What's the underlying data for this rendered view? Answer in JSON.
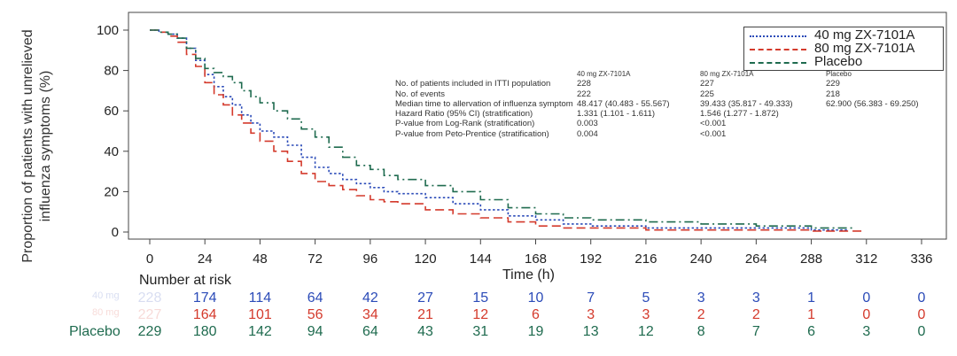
{
  "chart_data": {
    "type": "line",
    "subtype": "kaplan-meier step curve",
    "ylabel": [
      "Proportion of patients with unrelieved",
      "influenza symptoms (%)"
    ],
    "xlabel": "Time (h)",
    "xlim": [
      0,
      336
    ],
    "ylim": [
      0,
      100
    ],
    "xticks": [
      "0",
      "24",
      "48",
      "72",
      "96",
      "120",
      "144",
      "168",
      "192",
      "216",
      "240",
      "264",
      "288",
      "312",
      "336"
    ],
    "yticks": [
      "0",
      "20",
      "40",
      "60",
      "80",
      "100"
    ],
    "grid": false,
    "legend_position": "top-right",
    "series": [
      {
        "name": "40 mg ZX-7101A",
        "color": "#2b4bb8",
        "style": "dotted",
        "points": [
          [
            0,
            100
          ],
          [
            4,
            99
          ],
          [
            8,
            98
          ],
          [
            12,
            96
          ],
          [
            16,
            91
          ],
          [
            20,
            85
          ],
          [
            24,
            78
          ],
          [
            28,
            72
          ],
          [
            32,
            67
          ],
          [
            36,
            63
          ],
          [
            40,
            58
          ],
          [
            44,
            54
          ],
          [
            48,
            50
          ],
          [
            54,
            47
          ],
          [
            60,
            43
          ],
          [
            66,
            37
          ],
          [
            72,
            32
          ],
          [
            78,
            29
          ],
          [
            84,
            26
          ],
          [
            90,
            24
          ],
          [
            96,
            22
          ],
          [
            102,
            20
          ],
          [
            108,
            19
          ],
          [
            120,
            17
          ],
          [
            132,
            14
          ],
          [
            144,
            11
          ],
          [
            156,
            8
          ],
          [
            168,
            6
          ],
          [
            180,
            4
          ],
          [
            192,
            3
          ],
          [
            216,
            2
          ],
          [
            240,
            2
          ],
          [
            264,
            2
          ],
          [
            288,
            1
          ],
          [
            304,
            1
          ]
        ]
      },
      {
        "name": "80 mg ZX-7101A",
        "color": "#d43a2c",
        "style": "dashed",
        "points": [
          [
            0,
            100
          ],
          [
            4,
            99
          ],
          [
            8,
            97
          ],
          [
            12,
            94
          ],
          [
            16,
            88
          ],
          [
            20,
            82
          ],
          [
            24,
            74
          ],
          [
            28,
            68
          ],
          [
            32,
            63
          ],
          [
            36,
            58
          ],
          [
            40,
            54
          ],
          [
            44,
            49
          ],
          [
            48,
            45
          ],
          [
            54,
            40
          ],
          [
            60,
            35
          ],
          [
            66,
            29
          ],
          [
            72,
            25
          ],
          [
            78,
            23
          ],
          [
            84,
            21
          ],
          [
            90,
            18
          ],
          [
            96,
            16
          ],
          [
            102,
            15
          ],
          [
            108,
            14
          ],
          [
            120,
            11
          ],
          [
            132,
            9
          ],
          [
            144,
            7
          ],
          [
            156,
            5
          ],
          [
            168,
            3
          ],
          [
            180,
            2
          ],
          [
            192,
            2
          ],
          [
            216,
            1
          ],
          [
            240,
            1
          ],
          [
            264,
            1
          ],
          [
            288,
            0.5
          ],
          [
            310,
            0
          ]
        ]
      },
      {
        "name": "Placebo",
        "color": "#1f6b4f",
        "style": "dash-dot",
        "points": [
          [
            0,
            100
          ],
          [
            4,
            99
          ],
          [
            8,
            98
          ],
          [
            12,
            96
          ],
          [
            16,
            91
          ],
          [
            20,
            86
          ],
          [
            24,
            81
          ],
          [
            28,
            79
          ],
          [
            32,
            77
          ],
          [
            36,
            74
          ],
          [
            40,
            70
          ],
          [
            44,
            67
          ],
          [
            48,
            64
          ],
          [
            54,
            60
          ],
          [
            60,
            56
          ],
          [
            66,
            51
          ],
          [
            72,
            47
          ],
          [
            78,
            42
          ],
          [
            84,
            37
          ],
          [
            90,
            33
          ],
          [
            96,
            31
          ],
          [
            102,
            28
          ],
          [
            108,
            26
          ],
          [
            120,
            23
          ],
          [
            132,
            20
          ],
          [
            144,
            16
          ],
          [
            156,
            12
          ],
          [
            168,
            9
          ],
          [
            180,
            7
          ],
          [
            192,
            6
          ],
          [
            216,
            5
          ],
          [
            240,
            4
          ],
          [
            264,
            3
          ],
          [
            288,
            2
          ],
          [
            306,
            2
          ]
        ]
      }
    ],
    "annotation_table": {
      "headers": [
        "40 mg ZX-7101A",
        "80 mg ZX-7101A",
        "Placebo"
      ],
      "rows": [
        {
          "label": "No. of patients included in ITTI population",
          "values": [
            "228",
            "227",
            "229"
          ]
        },
        {
          "label": "No. of events",
          "values": [
            "222",
            "225",
            "218"
          ]
        },
        {
          "label": "Median time to allervation of influenza symptom",
          "values": [
            "48.417 (40.483 - 55.567)",
            "39.433 (35.817 - 49.333)",
            "62.900 (56.383 - 69.250)"
          ]
        },
        {
          "label": "Hazard Ratio (95% CI) (stratification)",
          "values": [
            "1.331 (1.101 - 1.611)",
            "1.546 (1.277 - 1.872)",
            ""
          ]
        },
        {
          "label": "P-value from Log-Rank (stratification)",
          "values": [
            "0.003",
            "<0.001",
            ""
          ]
        },
        {
          "label": "P-value from Peto-Prentice (stratification)",
          "values": [
            "0.004",
            "<0.001",
            ""
          ]
        }
      ]
    },
    "risk_table": {
      "title": "Number at risk",
      "rows": [
        {
          "name": "40 mg",
          "color": "#2b4bb8",
          "name_faded": true,
          "values": [
            "228",
            "174",
            "114",
            "64",
            "42",
            "27",
            "15",
            "10",
            "7",
            "5",
            "3",
            "3",
            "1",
            "0",
            "0"
          ]
        },
        {
          "name": "80 mg",
          "color": "#d43a2c",
          "name_faded": true,
          "values": [
            "227",
            "164",
            "101",
            "56",
            "34",
            "21",
            "12",
            "6",
            "3",
            "3",
            "2",
            "2",
            "1",
            "0",
            "0"
          ]
        },
        {
          "name": "Placebo",
          "color": "#1f6b4f",
          "name_faded": false,
          "values": [
            "229",
            "180",
            "142",
            "94",
            "64",
            "43",
            "31",
            "19",
            "13",
            "12",
            "8",
            "7",
            "6",
            "3",
            "0"
          ]
        }
      ]
    }
  }
}
